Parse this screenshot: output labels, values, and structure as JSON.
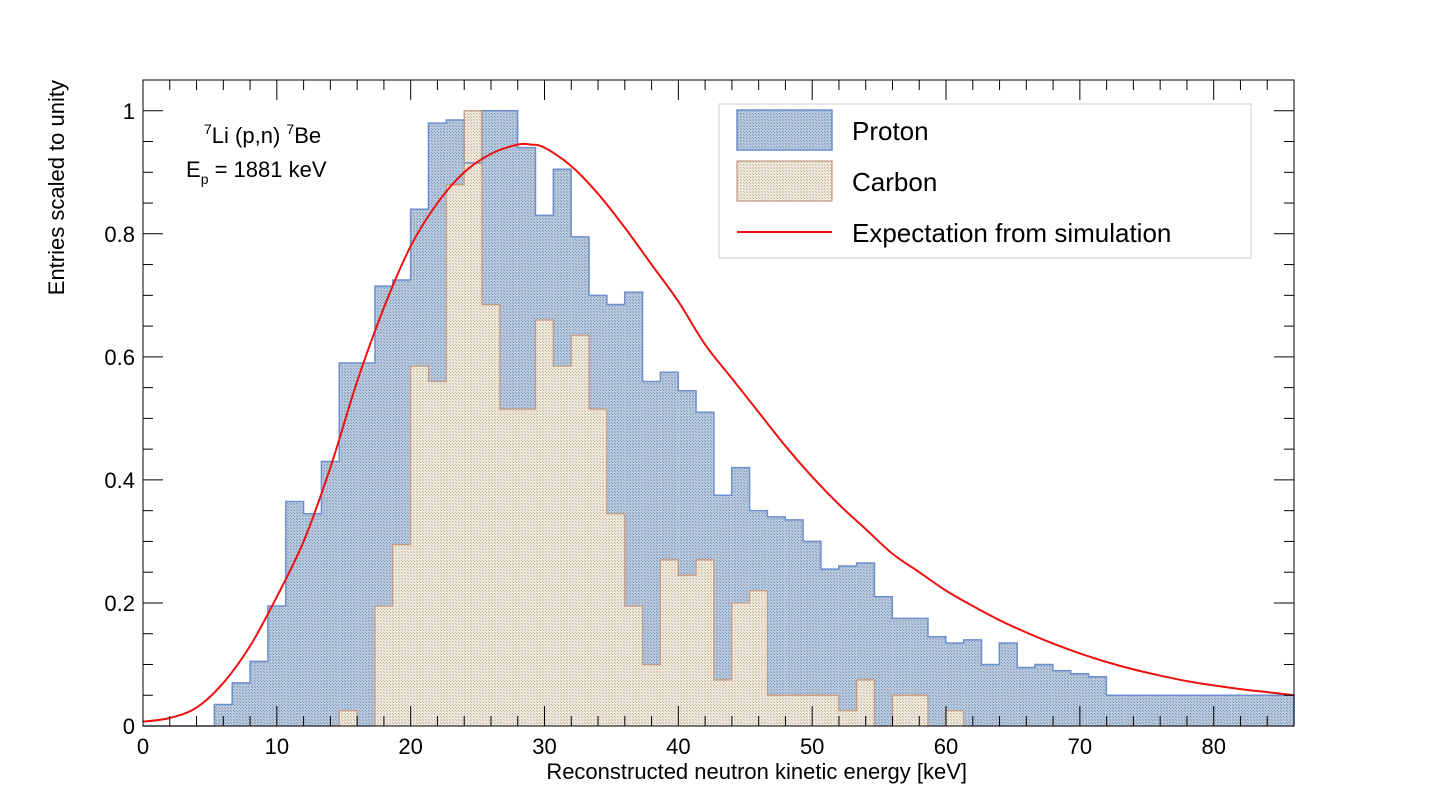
{
  "chart_data": {
    "type": "bar",
    "title": "",
    "xlabel": "Reconstructed neutron kinetic energy [keV]",
    "ylabel": "Entries scaled to unity",
    "xlim": [
      0,
      86
    ],
    "ylim": [
      0,
      1.05
    ],
    "x_ticks": [
      0,
      10,
      20,
      30,
      40,
      50,
      60,
      70,
      80
    ],
    "y_ticks": [
      0,
      0.2,
      0.4,
      0.6,
      0.8,
      1
    ],
    "x_tick_labels": [
      "0",
      "10",
      "20",
      "30",
      "40",
      "50",
      "60",
      "70",
      "80"
    ],
    "y_tick_labels": [
      "0",
      "0.2",
      "0.4",
      "0.6",
      "0.8",
      "1"
    ],
    "bin_width": 1.333,
    "bin_edges_start": 0,
    "annotations": {
      "reaction": {
        "sup1": "7",
        "text1": "Li (p,n) ",
        "sup2": "7",
        "text2": "Be"
      },
      "energy": {
        "prefix": "E",
        "sub": "p",
        "suffix": " = 1881 keV"
      }
    },
    "legend_position": "top-right",
    "series": [
      {
        "name": "Proton",
        "kind": "histogram",
        "fill": "#a9bfd6",
        "edge": "#6d8fcf",
        "values": [
          0,
          0,
          0,
          0,
          0.035,
          0.07,
          0.105,
          0.195,
          0.365,
          0.345,
          0.43,
          0.59,
          0.59,
          0.715,
          0.725,
          0.84,
          0.98,
          0.985,
          0.915,
          1.0,
          1.0,
          0.94,
          0.83,
          0.905,
          0.795,
          0.7,
          0.685,
          0.705,
          0.56,
          0.575,
          0.545,
          0.51,
          0.375,
          0.42,
          0.35,
          0.34,
          0.335,
          0.3,
          0.255,
          0.26,
          0.265,
          0.21,
          0.175,
          0.175,
          0.145,
          0.135,
          0.14,
          0.1,
          0.135,
          0.095,
          0.1,
          0.09,
          0.085,
          0.08,
          0.05,
          0.05,
          0.05,
          0.05,
          0.05,
          0.05,
          0.05,
          0.05,
          0.05,
          0.05,
          0.05
        ]
      },
      {
        "name": "Carbon",
        "kind": "histogram",
        "fill": "#e6dccb",
        "edge": "#c49a82",
        "values": [
          0,
          0,
          0,
          0,
          0,
          0,
          0,
          0,
          0,
          0,
          0,
          0.025,
          0,
          0.195,
          0.295,
          0.585,
          0.56,
          0.88,
          1.0,
          0.685,
          0.515,
          0.515,
          0.66,
          0.585,
          0.635,
          0.515,
          0.345,
          0.195,
          0.1,
          0.27,
          0.245,
          0.27,
          0.075,
          0.2,
          0.22,
          0.05,
          0.05,
          0.05,
          0.05,
          0.025,
          0.075,
          0,
          0.05,
          0.05,
          0,
          0.025,
          0,
          0,
          0,
          0,
          0,
          0,
          0,
          0,
          0,
          0,
          0,
          0,
          0,
          0,
          0,
          0,
          0,
          0,
          0
        ]
      },
      {
        "name": "Expectation from simulation",
        "kind": "line",
        "color": "#ee1111",
        "x": [
          0,
          2,
          4,
          6,
          8,
          10,
          12,
          14,
          16,
          18,
          20,
          22,
          24,
          26,
          28,
          29,
          30,
          32,
          34,
          36,
          38,
          40,
          42,
          44,
          46,
          48,
          50,
          52,
          54,
          56,
          58,
          60,
          62,
          64,
          66,
          68,
          70,
          72,
          74,
          76,
          78,
          80,
          82,
          84,
          86
        ],
        "y": [
          0.007,
          0.013,
          0.03,
          0.07,
          0.13,
          0.21,
          0.3,
          0.42,
          0.56,
          0.68,
          0.78,
          0.85,
          0.9,
          0.93,
          0.945,
          0.945,
          0.94,
          0.91,
          0.865,
          0.81,
          0.75,
          0.69,
          0.62,
          0.565,
          0.51,
          0.455,
          0.405,
          0.36,
          0.32,
          0.28,
          0.25,
          0.22,
          0.195,
          0.172,
          0.152,
          0.134,
          0.118,
          0.104,
          0.092,
          0.082,
          0.073,
          0.066,
          0.06,
          0.055,
          0.05
        ]
      }
    ]
  }
}
